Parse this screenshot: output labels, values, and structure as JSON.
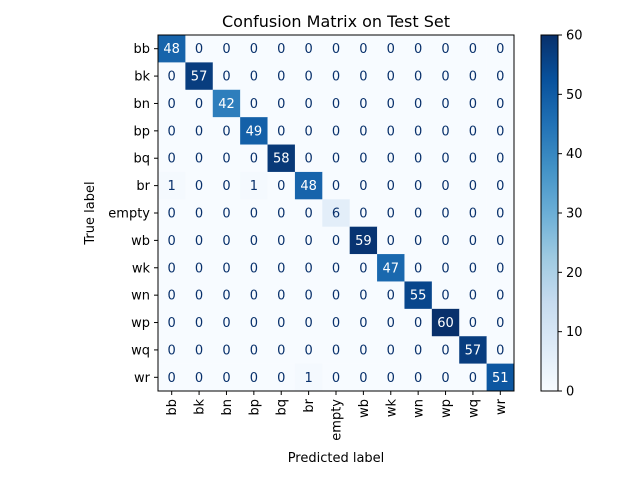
{
  "chart_data": {
    "type": "heatmap",
    "title": "Confusion Matrix on Test Set",
    "xlabel": "Predicted label",
    "ylabel": "True label",
    "labels": [
      "bb",
      "bk",
      "bn",
      "bp",
      "bq",
      "br",
      "empty",
      "wb",
      "wk",
      "wn",
      "wp",
      "wq",
      "wr"
    ],
    "matrix": [
      [
        48,
        0,
        0,
        0,
        0,
        0,
        0,
        0,
        0,
        0,
        0,
        0,
        0
      ],
      [
        0,
        57,
        0,
        0,
        0,
        0,
        0,
        0,
        0,
        0,
        0,
        0,
        0
      ],
      [
        0,
        0,
        42,
        0,
        0,
        0,
        0,
        0,
        0,
        0,
        0,
        0,
        0
      ],
      [
        0,
        0,
        0,
        49,
        0,
        0,
        0,
        0,
        0,
        0,
        0,
        0,
        0
      ],
      [
        0,
        0,
        0,
        0,
        58,
        0,
        0,
        0,
        0,
        0,
        0,
        0,
        0
      ],
      [
        1,
        0,
        0,
        1,
        0,
        48,
        0,
        0,
        0,
        0,
        0,
        0,
        0
      ],
      [
        0,
        0,
        0,
        0,
        0,
        0,
        6,
        0,
        0,
        0,
        0,
        0,
        0
      ],
      [
        0,
        0,
        0,
        0,
        0,
        0,
        0,
        59,
        0,
        0,
        0,
        0,
        0
      ],
      [
        0,
        0,
        0,
        0,
        0,
        0,
        0,
        0,
        47,
        0,
        0,
        0,
        0
      ],
      [
        0,
        0,
        0,
        0,
        0,
        0,
        0,
        0,
        0,
        55,
        0,
        0,
        0
      ],
      [
        0,
        0,
        0,
        0,
        0,
        0,
        0,
        0,
        0,
        0,
        60,
        0,
        0
      ],
      [
        0,
        0,
        0,
        0,
        0,
        0,
        0,
        0,
        0,
        0,
        0,
        57,
        0
      ],
      [
        0,
        0,
        0,
        0,
        0,
        1,
        0,
        0,
        0,
        0,
        0,
        0,
        51
      ]
    ],
    "colormap": "Blues",
    "vmin": 0,
    "vmax": 60,
    "colorbar_ticks": [
      0,
      10,
      20,
      30,
      40,
      50,
      60
    ],
    "xtick_rotation": "vertical",
    "colors": {
      "low": "#f7fbff",
      "high": "#08306b"
    }
  }
}
